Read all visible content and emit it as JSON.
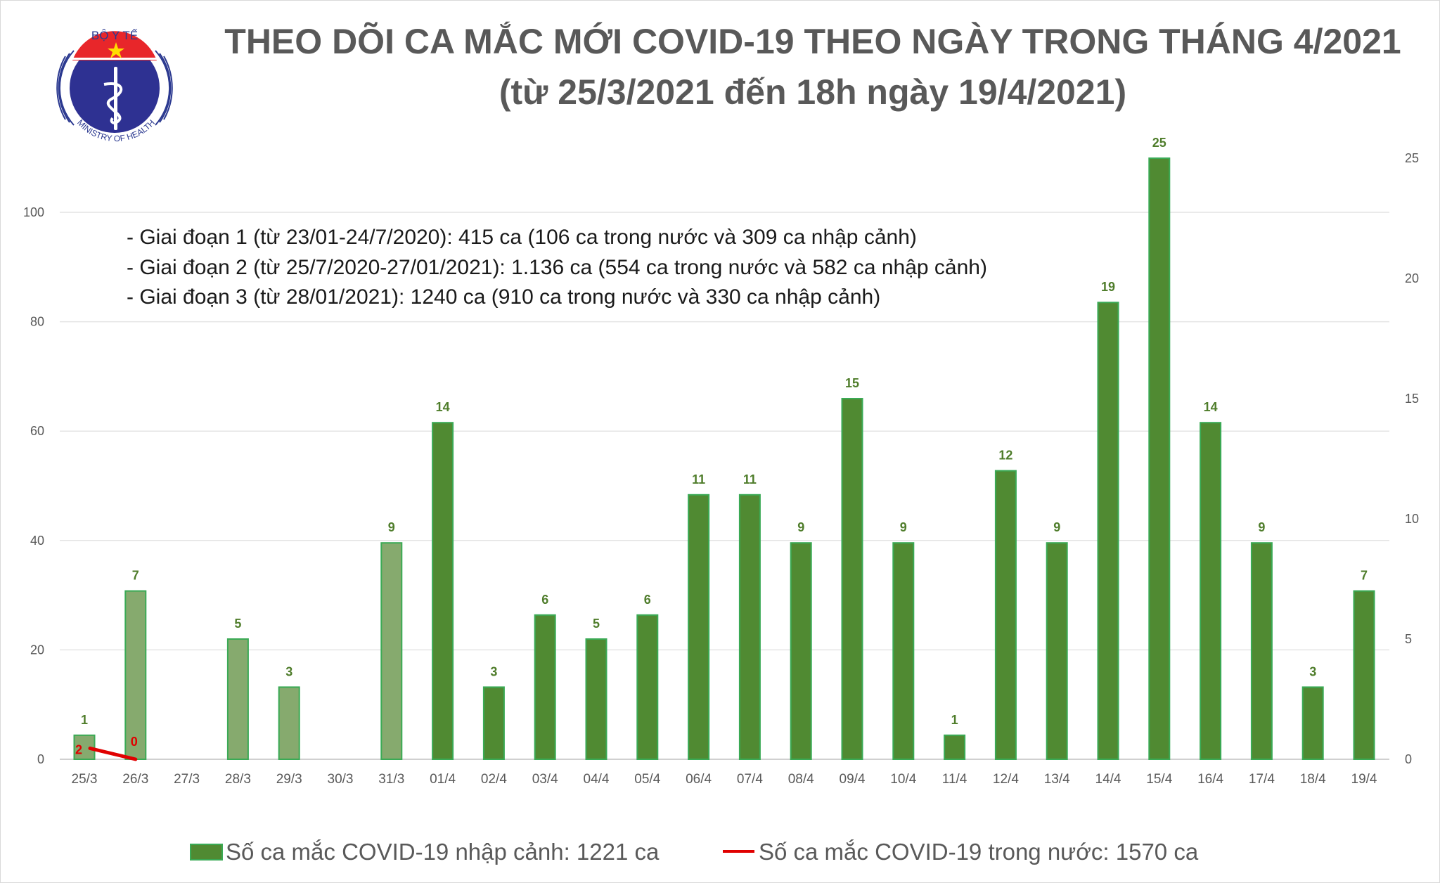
{
  "logo": {
    "text_top": "BỘ Y TẾ",
    "text_bottom": "MINISTRY OF HEALTH"
  },
  "title_line1": "THEO DÕI CA MẮC MỚI COVID-19 THEO NGÀY TRONG THÁNG 4/2021",
  "title_line2": "(từ 25/3/2021 đến 18h ngày 19/4/2021)",
  "notes": [
    "- Giai đoạn 1 (từ 23/01-24/7/2020): 415 ca (106 ca trong nước và 309 ca nhập cảnh)",
    "- Giai đoạn 2 (từ 25/7/2020-27/01/2021): 1.136 ca (554 ca trong nước và 582 ca nhập cảnh)",
    "- Giai đoạn 3 (từ 28/01/2021): 1240 ca (910 ca trong nước và 330 ca nhập cảnh)"
  ],
  "legend": {
    "bar": "Số ca mắc COVID-19 nhập cảnh: 1221 ca",
    "line": "Số ca mắc COVID-19 trong nước: 1570 ca"
  },
  "colors": {
    "bar_old": "#86aa6e",
    "bar_new": "#508a32",
    "bar_border": "#3aaa55",
    "line": "#e00000",
    "label": "#4f7d2b"
  },
  "chart_data": {
    "type": "bar",
    "categories": [
      "25/3",
      "26/3",
      "27/3",
      "28/3",
      "29/3",
      "30/3",
      "31/3",
      "01/4",
      "02/4",
      "03/4",
      "04/4",
      "05/4",
      "06/4",
      "07/4",
      "08/4",
      "09/4",
      "10/4",
      "11/4",
      "12/4",
      "13/4",
      "14/4",
      "15/4",
      "16/4",
      "17/4",
      "18/4",
      "19/4"
    ],
    "series": [
      {
        "name": "Số ca mắc COVID-19 nhập cảnh",
        "type": "bar",
        "axis": "right",
        "values": [
          1,
          7,
          null,
          5,
          3,
          null,
          9,
          14,
          3,
          6,
          5,
          6,
          11,
          11,
          9,
          15,
          9,
          1,
          12,
          9,
          19,
          25,
          14,
          9,
          3,
          7
        ]
      },
      {
        "name": "Số ca mắc COVID-19 trong nước",
        "type": "line",
        "axis": "left",
        "values": [
          2,
          0,
          null,
          null,
          null,
          null,
          null,
          null,
          null,
          null,
          null,
          null,
          null,
          null,
          null,
          null,
          null,
          null,
          null,
          null,
          null,
          null,
          null,
          null,
          null,
          null
        ]
      }
    ],
    "left_axis": {
      "ticks": [
        0,
        20,
        40,
        60,
        80,
        100
      ],
      "ylim": [
        0,
        100
      ]
    },
    "right_axis": {
      "ticks": [
        0,
        5,
        10,
        15,
        20,
        25
      ],
      "ylim": [
        0,
        25
      ]
    },
    "grid": true,
    "legend_position": "bottom"
  }
}
